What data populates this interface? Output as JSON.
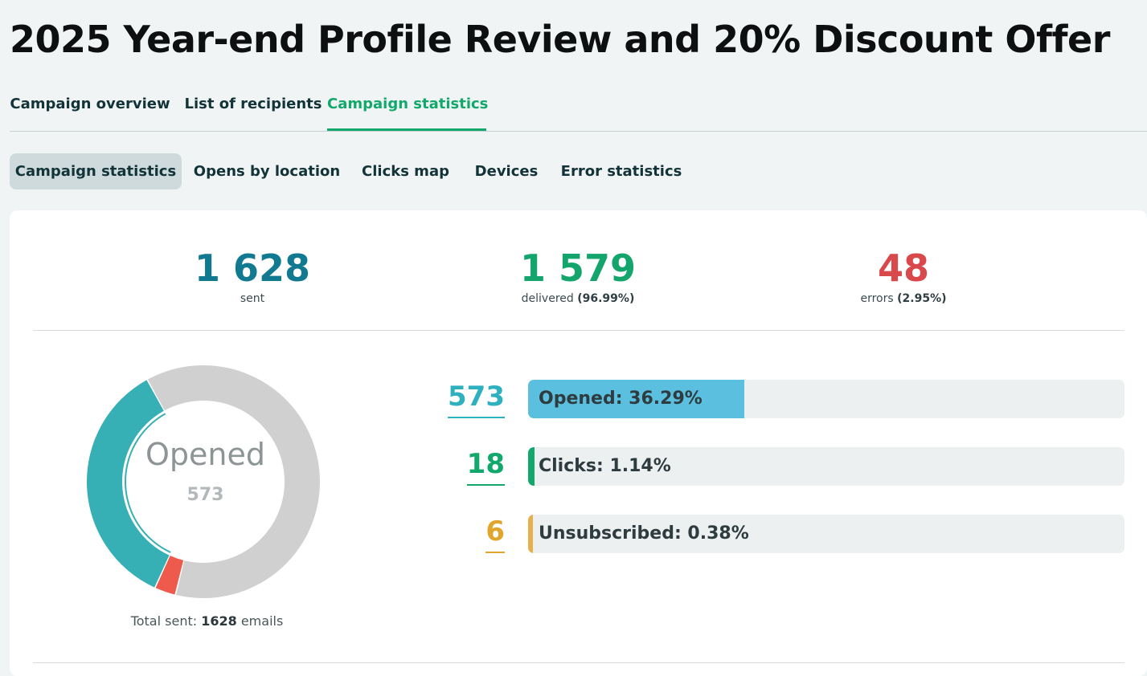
{
  "page": {
    "title": "2025 Year-end Profile Review and 20% Discount Offer"
  },
  "main_tabs": [
    {
      "label": "Campaign overview",
      "active": false
    },
    {
      "label": "List of recipients",
      "active": false
    },
    {
      "label": "Campaign statistics",
      "active": true
    }
  ],
  "sub_tabs": [
    {
      "label": "Campaign statistics",
      "active": true
    },
    {
      "label": "Opens by location",
      "active": false
    },
    {
      "label": "Clicks map",
      "active": false
    },
    {
      "label": "Devices",
      "active": false
    },
    {
      "label": "Error statistics",
      "active": false
    }
  ],
  "kpis": {
    "sent": {
      "value": "1 628",
      "label": "sent",
      "color": "#117a91"
    },
    "delivered": {
      "value": "1 579",
      "label": "delivered",
      "percent": "(96.99%)",
      "color": "#14a56d"
    },
    "errors": {
      "value": "48",
      "label": "errors",
      "percent": "(2.95%)",
      "color": "#d9484a"
    }
  },
  "donut": {
    "center_label": "Opened",
    "center_value": "573",
    "total_prefix": "Total sent: ",
    "total_value": "1628",
    "total_suffix": " emails",
    "segments": [
      {
        "name": "opened",
        "value": 573,
        "color": "#36b0b4"
      },
      {
        "name": "errors",
        "value": 48,
        "color": "#ee5a4c"
      },
      {
        "name": "other",
        "value": 1007,
        "color": "#d0d0d0"
      }
    ],
    "total": 1628
  },
  "metrics": [
    {
      "name": "opened",
      "value": "573",
      "label": "Opened: 36.29%",
      "fraction": 0.3629,
      "color": "#2fb0bf",
      "fill_color": "#5bbfe0"
    },
    {
      "name": "clicks",
      "value": "18",
      "label": "Clicks: 1.14%",
      "fraction": 0.0114,
      "color": "#12a86b",
      "fill_color": "#12a86b"
    },
    {
      "name": "unsubscribed",
      "value": "6",
      "label": "Unsubscribed: 0.38%",
      "fraction": 0.0038,
      "color": "#e0a52c",
      "fill_color": "#e8b04a"
    }
  ]
}
